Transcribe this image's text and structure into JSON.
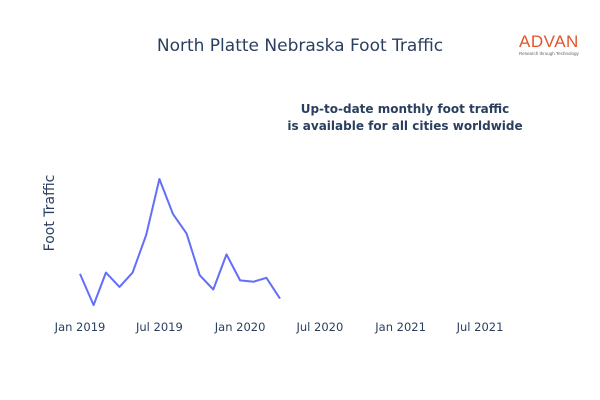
{
  "chart_data": {
    "type": "line",
    "title": "North Platte Nebraska Foot Traffic",
    "ylabel": "Foot Traffic",
    "xlabel": "",
    "annotation": [
      "Up-to-date monthly foot traffic",
      "is available for all cities worldwide"
    ],
    "x_ticks": [
      {
        "date": "2019-01-01",
        "label": "Jan 2019"
      },
      {
        "date": "2019-07-01",
        "label": "Jul 2019"
      },
      {
        "date": "2020-01-01",
        "label": "Jan 2020"
      },
      {
        "date": "2020-07-01",
        "label": "Jul 2020"
      },
      {
        "date": "2021-01-01",
        "label": "Jan 2021"
      },
      {
        "date": "2021-07-01",
        "label": "Jul 2021"
      }
    ],
    "y_ticks_shown": false,
    "grid": false,
    "series": [
      {
        "color": "#636efa",
        "points": [
          {
            "x": "2019-01-01",
            "y": 27
          },
          {
            "x": "2019-02-01",
            "y": 3
          },
          {
            "x": "2019-03-01",
            "y": 28
          },
          {
            "x": "2019-04-01",
            "y": 17
          },
          {
            "x": "2019-05-01",
            "y": 28
          },
          {
            "x": "2019-06-01",
            "y": 57
          },
          {
            "x": "2019-07-01",
            "y": 100
          },
          {
            "x": "2019-08-01",
            "y": 73
          },
          {
            "x": "2019-09-01",
            "y": 58
          },
          {
            "x": "2019-10-01",
            "y": 26
          },
          {
            "x": "2019-11-01",
            "y": 15
          },
          {
            "x": "2019-12-01",
            "y": 42
          },
          {
            "x": "2020-01-01",
            "y": 22
          },
          {
            "x": "2020-02-01",
            "y": 21
          },
          {
            "x": "2020-03-01",
            "y": 24
          },
          {
            "x": "2020-04-01",
            "y": 8
          }
        ]
      }
    ]
  },
  "logo": {
    "word": "ADVAN",
    "tagline": "Research through Technology"
  }
}
